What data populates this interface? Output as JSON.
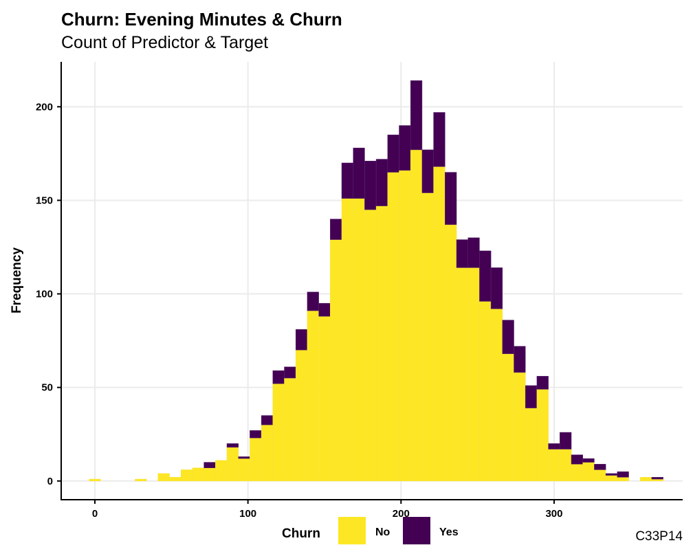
{
  "chart_data": {
    "type": "bar",
    "title": "Churn: Evening Minutes & Churn",
    "subtitle": "Count of Predictor & Target",
    "xlabel": "",
    "ylabel": "Frequency",
    "caption": "C33P14",
    "stacked": true,
    "bin_width": 7.5,
    "xlim": [
      -22,
      384
    ],
    "ylim": [
      -10,
      224
    ],
    "x_ticks": [
      0,
      100,
      200,
      300
    ],
    "y_ticks": [
      0,
      50,
      100,
      150,
      200
    ],
    "grid": true,
    "legend": {
      "title": "Churn",
      "placement": "bottom"
    },
    "x": [
      0,
      7.5,
      15,
      22.5,
      30,
      37.5,
      45,
      52.5,
      60,
      67.5,
      75,
      82.5,
      90,
      97.5,
      105,
      112.5,
      120,
      127.5,
      135,
      142.5,
      150,
      157.5,
      165,
      172.5,
      180,
      187.5,
      195,
      202.5,
      210,
      217.5,
      225,
      232.5,
      240,
      247.5,
      255,
      262.5,
      270,
      277.5,
      285,
      292.5,
      300,
      307.5,
      315,
      322.5,
      330,
      337.5,
      345,
      352.5,
      360,
      367.5
    ],
    "series": [
      {
        "name": "No",
        "color": "#FDE725",
        "values": [
          1,
          0,
          0,
          0,
          1,
          0,
          4,
          2,
          6,
          7,
          7,
          11,
          18,
          12,
          23,
          30,
          52,
          55,
          70,
          91,
          88,
          129,
          151,
          151,
          145,
          147,
          165,
          166,
          177,
          154,
          168,
          137,
          114,
          114,
          96,
          92,
          68,
          58,
          39,
          49,
          17,
          17,
          9,
          10,
          6,
          3,
          2,
          0,
          2,
          1
        ]
      },
      {
        "name": "Yes",
        "color": "#440154",
        "values": [
          0,
          0,
          0,
          0,
          0,
          0,
          0,
          0,
          0,
          0,
          3,
          0,
          2,
          1,
          4,
          5,
          7,
          6,
          11,
          10,
          7,
          11,
          19,
          27,
          26,
          25,
          20,
          24,
          37,
          23,
          29,
          28,
          15,
          16,
          27,
          22,
          18,
          14,
          12,
          7,
          3,
          9,
          5,
          2,
          3,
          1,
          3,
          0,
          0,
          1
        ]
      }
    ]
  }
}
